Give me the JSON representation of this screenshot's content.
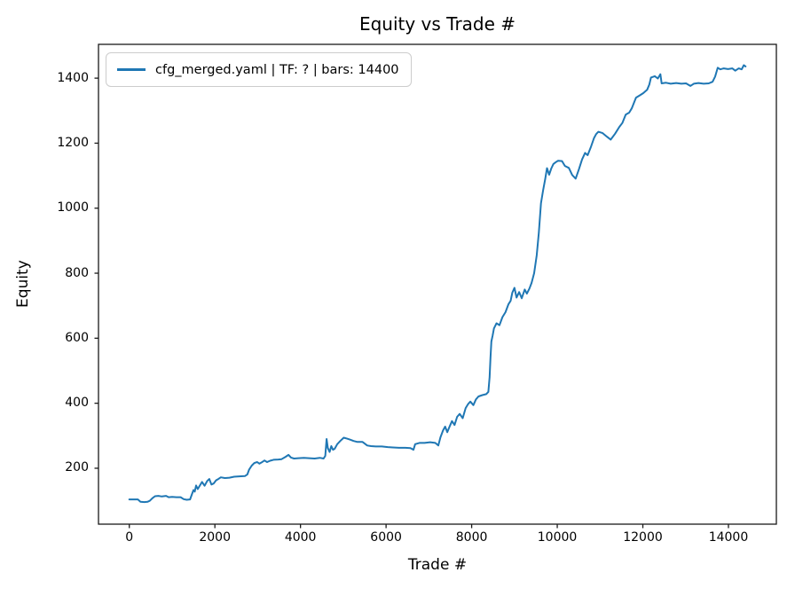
{
  "chart_data": {
    "type": "line",
    "title": "Equity vs Trade #",
    "xlabel": "Trade #",
    "ylabel": "Equity",
    "xlim": [
      -720,
      15120
    ],
    "ylim": [
      28,
      1504
    ],
    "xticks": [
      0,
      2000,
      4000,
      6000,
      8000,
      10000,
      12000,
      14000
    ],
    "yticks": [
      200,
      400,
      600,
      800,
      1000,
      1200,
      1400
    ],
    "grid": false,
    "legend_position": "upper left",
    "axis_color": "#1a1a1a",
    "series": [
      {
        "name": "cfg_merged.yaml | TF: ? | bars: 14400",
        "color": "#1f77b4",
        "x": [
          0,
          120,
          200,
          260,
          350,
          430,
          480,
          540,
          600,
          680,
          760,
          860,
          920,
          1000,
          1100,
          1200,
          1270,
          1340,
          1420,
          1470,
          1500,
          1530,
          1560,
          1600,
          1650,
          1700,
          1760,
          1820,
          1870,
          1920,
          1970,
          2030,
          2080,
          2140,
          2230,
          2340,
          2450,
          2570,
          2700,
          2760,
          2800,
          2860,
          2920,
          2990,
          3040,
          3090,
          3160,
          3220,
          3290,
          3370,
          3480,
          3560,
          3650,
          3720,
          3780,
          3850,
          3950,
          4080,
          4200,
          4330,
          4450,
          4540,
          4580,
          4610,
          4640,
          4680,
          4720,
          4760,
          4800,
          4860,
          4930,
          5010,
          5090,
          5160,
          5240,
          5330,
          5450,
          5560,
          5650,
          5760,
          5900,
          6040,
          6160,
          6300,
          6450,
          6570,
          6640,
          6680,
          6780,
          6900,
          7030,
          7150,
          7220,
          7270,
          7330,
          7380,
          7430,
          7490,
          7540,
          7600,
          7660,
          7720,
          7790,
          7860,
          7920,
          7970,
          8040,
          8100,
          8160,
          8250,
          8340,
          8390,
          8420,
          8440,
          8460,
          8490,
          8520,
          8580,
          8650,
          8720,
          8790,
          8860,
          8910,
          8950,
          9000,
          9050,
          9110,
          9170,
          9240,
          9290,
          9350,
          9400,
          9460,
          9520,
          9570,
          9620,
          9670,
          9720,
          9760,
          9810,
          9860,
          9910,
          9960,
          10020,
          10110,
          10180,
          10270,
          10350,
          10430,
          10510,
          10580,
          10650,
          10710,
          10790,
          10860,
          10910,
          10960,
          11060,
          11160,
          11250,
          11350,
          11450,
          11520,
          11600,
          11680,
          11740,
          11840,
          11930,
          12010,
          12100,
          12150,
          12190,
          12280,
          12350,
          12410,
          12440,
          12540,
          12650,
          12780,
          12900,
          13010,
          13110,
          13190,
          13300,
          13420,
          13540,
          13630,
          13690,
          13750,
          13810,
          13890,
          13990,
          14090,
          14160,
          14240,
          14310,
          14360,
          14400
        ],
        "y": [
          104,
          104,
          104,
          97,
          96,
          97,
          100,
          108,
          114,
          115,
          113,
          115,
          111,
          112,
          111,
          111,
          105,
          103,
          104,
          122,
          133,
          128,
          147,
          136,
          147,
          158,
          146,
          161,
          167,
          150,
          153,
          163,
          167,
          172,
          170,
          171,
          174,
          175,
          176,
          181,
          196,
          208,
          216,
          219,
          214,
          218,
          224,
          219,
          223,
          226,
          227,
          228,
          235,
          241,
          233,
          230,
          231,
          232,
          231,
          230,
          232,
          230,
          238,
          290,
          262,
          250,
          268,
          257,
          260,
          274,
          284,
          294,
          291,
          288,
          284,
          281,
          281,
          270,
          268,
          267,
          267,
          265,
          264,
          263,
          263,
          262,
          257,
          274,
          278,
          278,
          280,
          278,
          270,
          295,
          316,
          328,
          311,
          330,
          345,
          333,
          358,
          367,
          354,
          385,
          398,
          405,
          394,
          412,
          421,
          425,
          428,
          435,
          480,
          540,
          590,
          608,
          630,
          646,
          640,
          665,
          680,
          705,
          715,
          740,
          755,
          725,
          742,
          723,
          750,
          737,
          753,
          770,
          800,
          855,
          925,
          1015,
          1055,
          1090,
          1123,
          1103,
          1122,
          1136,
          1141,
          1146,
          1145,
          1130,
          1124,
          1102,
          1091,
          1121,
          1150,
          1170,
          1163,
          1190,
          1216,
          1228,
          1235,
          1231,
          1220,
          1211,
          1229,
          1250,
          1262,
          1288,
          1294,
          1307,
          1340,
          1347,
          1354,
          1364,
          1380,
          1402,
          1406,
          1399,
          1412,
          1384,
          1386,
          1383,
          1385,
          1383,
          1384,
          1376,
          1383,
          1385,
          1383,
          1384,
          1389,
          1405,
          1432,
          1427,
          1430,
          1428,
          1430,
          1423,
          1430,
          1427,
          1440,
          1436
        ]
      }
    ]
  }
}
